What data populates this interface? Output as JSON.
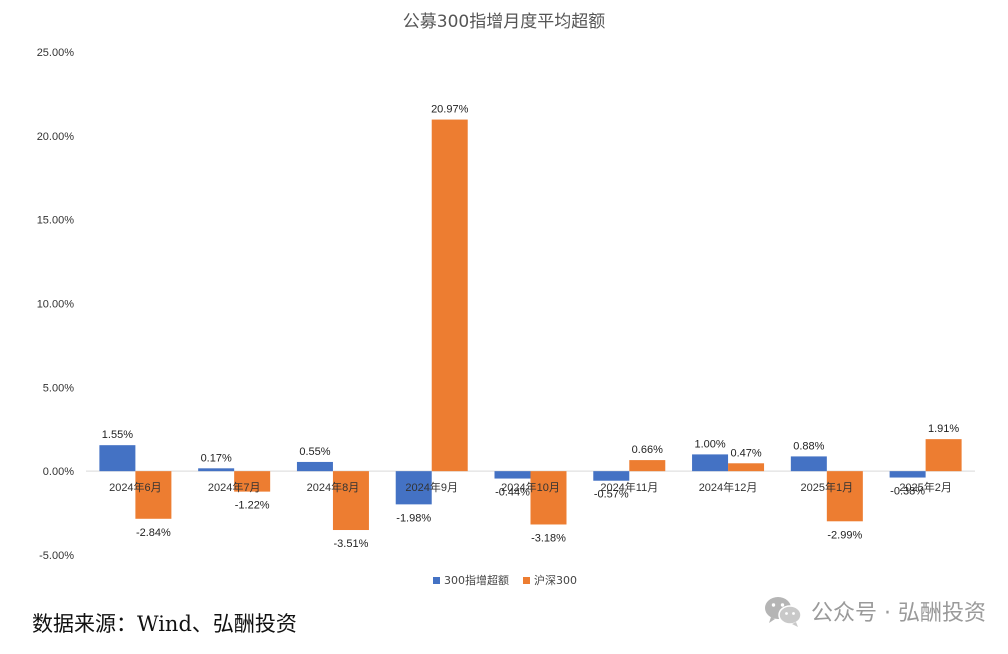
{
  "chart_data": {
    "type": "bar",
    "title": "公募300指增月度平均超额",
    "categories": [
      "2024年6月",
      "2024年7月",
      "2024年8月",
      "2024年9月",
      "2024年10月",
      "2024年11月",
      "2024年12月",
      "2025年1月",
      "2025年2月"
    ],
    "series": [
      {
        "name": "300指增超额",
        "color": "#4472C4",
        "values": [
          1.55,
          0.17,
          0.55,
          -1.98,
          -0.44,
          -0.57,
          1.0,
          0.88,
          -0.38
        ],
        "labels": [
          "1.55%",
          "0.17%",
          "0.55%",
          "-1.98%",
          "-0.44%",
          "-0.57%",
          "1.00%",
          "0.88%",
          "-0.38%"
        ]
      },
      {
        "name": "沪深300",
        "color": "#ED7D31",
        "values": [
          -2.84,
          -1.22,
          -3.51,
          20.97,
          -3.18,
          0.66,
          0.47,
          -2.99,
          1.91
        ],
        "labels": [
          "-2.84%",
          "-1.22%",
          "-3.51%",
          "20.97%",
          "-3.18%",
          "0.66%",
          "0.47%",
          "-2.99%",
          "1.91%"
        ]
      }
    ],
    "yticks": [
      25,
      20,
      15,
      10,
      5,
      0,
      -5
    ],
    "ytick_labels": [
      "25.00%",
      "20.00%",
      "15.00%",
      "10.00%",
      "5.00%",
      "0.00%",
      "-5.00%"
    ],
    "ylim": [
      -5,
      25
    ],
    "grid": false,
    "legend_position": "bottom"
  },
  "footer": {
    "source": "数据来源：Wind、弘酬投资",
    "watermark": "公众号 · 弘酬投资"
  }
}
